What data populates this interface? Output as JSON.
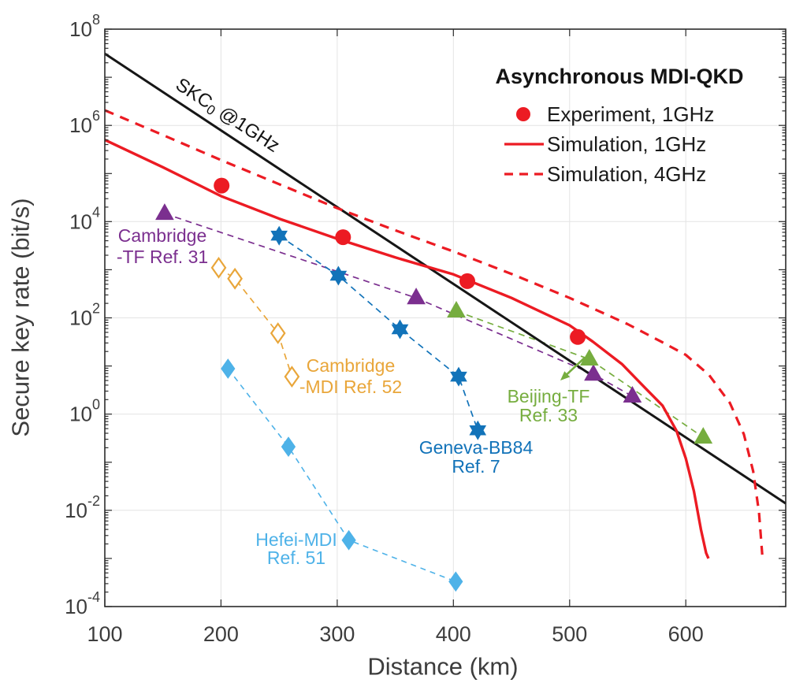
{
  "figure": {
    "background": "#ffffff"
  },
  "chart_data": {
    "type": "line",
    "title": "",
    "x_axis": {
      "label": "Distance (km)",
      "min": 100,
      "max": 686,
      "major_ticks": [
        100,
        200,
        300,
        400,
        500,
        600
      ],
      "gridlines": [
        200,
        300,
        400,
        500,
        600
      ]
    },
    "y_axis": {
      "label": "Secure key rate (bit/s)",
      "scale": "log10",
      "min_exponent": -4,
      "max_exponent": 8,
      "labeled_exponents": [
        8,
        6,
        4,
        2,
        0,
        -2,
        -4
      ],
      "gridline_exponents": [
        6,
        4,
        2,
        0,
        -2
      ]
    },
    "grid": "on",
    "legend": {
      "position": "top-right-inside",
      "title": "Asynchronous MDI-QKD",
      "title_x": 786,
      "title_y": 97,
      "marker_x": 664,
      "line_x1": 640,
      "line_x2": 690,
      "text_x": 694,
      "items": [
        {
          "label": "Experiment, 1GHz",
          "swatch": "dot",
          "color": "#ec1b23",
          "y": 145
        },
        {
          "label": "Simulation, 1GHz",
          "swatch": "solid-line",
          "color": "#ec1b23",
          "y": 183
        },
        {
          "label": "Simulation, 4GHz",
          "swatch": "dashed-line",
          "color": "#ec1b23",
          "y": 221
        }
      ]
    },
    "series": [
      {
        "id": "cambridge-tf",
        "name": "Cambridge-TF Ref. 31",
        "color": "#7b2f8f",
        "line": {
          "style": "dashed",
          "width": 1.7,
          "dash": [
            8,
            6
          ]
        },
        "marker": {
          "shape": "triangle",
          "filled": true,
          "size": 11
        },
        "points": [
          [
            151.5,
            14700.0
          ],
          [
            368,
            260.0
          ],
          [
            520.5,
            6.7
          ],
          [
            554,
            2.35
          ]
        ]
      },
      {
        "id": "cambridge-mdi",
        "name": "Cambridge-MDI Ref. 52",
        "color": "#e9a63a",
        "line": {
          "style": "dashed",
          "width": 1.7,
          "dash": [
            8,
            6
          ]
        },
        "marker": {
          "shape": "diamond",
          "filled": false,
          "size": 11.5
        },
        "points": [
          [
            198,
            1100.0
          ],
          [
            212,
            650.0
          ],
          [
            249,
            48
          ],
          [
            261,
            6.0
          ]
        ]
      },
      {
        "id": "beijing-tf",
        "name": "Beijing-TF Ref. 33",
        "color": "#76ad3f",
        "line": {
          "style": "dashed",
          "width": 1.7,
          "dash": [
            8,
            6
          ]
        },
        "marker": {
          "shape": "triangle",
          "filled": true,
          "size": 11
        },
        "points": [
          [
            402.5,
            138.0
          ],
          [
            517,
            13.8
          ],
          [
            615,
            0.33
          ]
        ]
      },
      {
        "id": "geneva-bb84",
        "name": "Geneva-BB84 Ref. 7",
        "color": "#1273b9",
        "line": {
          "style": "dashed",
          "width": 1.7,
          "dash": [
            8,
            6
          ]
        },
        "marker": {
          "shape": "hexagram",
          "filled": true,
          "size": 11.5
        },
        "points": [
          [
            250,
            5100.0
          ],
          [
            301,
            750.0
          ],
          [
            354,
            58
          ],
          [
            404.5,
            6.0
          ],
          [
            421,
            0.46
          ]
        ]
      },
      {
        "id": "hefei-mdi",
        "name": "Hefei-MDI Ref. 51",
        "color": "#4eb2e8",
        "line": {
          "style": "dashed",
          "width": 1.6,
          "dash": [
            7,
            6
          ]
        },
        "marker": {
          "shape": "diamond",
          "filled": true,
          "size": 11.5
        },
        "points": [
          [
            206,
            8.8
          ],
          [
            258,
            0.21
          ],
          [
            310,
            0.0024
          ],
          [
            402,
            0.00033
          ]
        ]
      },
      {
        "id": "skc0",
        "name": "SKC0 @1GHz",
        "color": "#161616",
        "line": {
          "style": "solid",
          "width": 3
        },
        "marker": {
          "shape": "none"
        },
        "points": [
          [
            100,
            31000000.0
          ],
          [
            686,
            0.0139
          ]
        ]
      },
      {
        "id": "simulation-4ghz",
        "name": "Simulation, 4GHz",
        "color": "#ec1b23",
        "line": {
          "style": "dashed",
          "width": 3.2,
          "dash": [
            12,
            9
          ]
        },
        "marker": {
          "shape": "none"
        },
        "points": [
          [
            100,
            2060000.0
          ],
          [
            150,
            630000.0
          ],
          [
            200,
            190000.0
          ],
          [
            250,
            60000.0
          ],
          [
            300,
            19000.0
          ],
          [
            350,
            6600.0
          ],
          [
            400,
            2400.0
          ],
          [
            450,
            820.0
          ],
          [
            500,
            260.0
          ],
          [
            550,
            74.0
          ],
          [
            580,
            31.0
          ],
          [
            600,
            17.0
          ],
          [
            620,
            6.5
          ],
          [
            638,
            1.7
          ],
          [
            650,
            0.38
          ],
          [
            658,
            0.065
          ],
          [
            663,
            0.009
          ],
          [
            665.8,
            0.0012
          ]
        ]
      },
      {
        "id": "simulation-1ghz",
        "name": "Simulation, 1GHz",
        "color": "#ec1b23",
        "line": {
          "style": "solid",
          "width": 3.4
        },
        "marker": {
          "shape": "none"
        },
        "points": [
          [
            100,
            500000.0
          ],
          [
            150,
            135000.0
          ],
          [
            200,
            34000.0
          ],
          [
            250,
            11500.0
          ],
          [
            300,
            4400.0
          ],
          [
            350,
            1800.0
          ],
          [
            400,
            800.0
          ],
          [
            450,
            260.0
          ],
          [
            500,
            70.0
          ],
          [
            520,
            32.0
          ],
          [
            545,
            11.0
          ],
          [
            565,
            3.5
          ],
          [
            580,
            1.5
          ],
          [
            592,
            0.45
          ],
          [
            600,
            0.12
          ],
          [
            607,
            0.025
          ],
          [
            613,
            0.004
          ],
          [
            617.5,
            0.0013
          ],
          [
            619.5,
            0.001
          ]
        ]
      },
      {
        "id": "experiment-1ghz",
        "name": "Experiment, 1GHz",
        "color": "#ec1b23",
        "line": {
          "style": "none"
        },
        "marker": {
          "shape": "circle",
          "filled": true,
          "size": 10
        },
        "points": [
          [
            200.5,
            56000.0
          ],
          [
            305,
            4750.0
          ],
          [
            412,
            580.0
          ],
          [
            507,
            40
          ]
        ]
      }
    ],
    "annotations": [
      {
        "id": "skc0-label",
        "pre": "SKC",
        "sub": "0",
        "post": " @1GHz",
        "color": "#141414",
        "x": 289,
        "y": 146,
        "rotation": 33
      },
      {
        "id": "cambridge-tf-label",
        "lines": [
          "Cambridge",
          "-TF Ref. 31"
        ],
        "color": "#7b2f8f",
        "x": 206,
        "y": 299,
        "line_height": 27
      },
      {
        "id": "cambridge-mdi-label",
        "lines": [
          "Cambridge",
          "-MDI Ref. 52"
        ],
        "color": "#e9a63a",
        "x": 445,
        "y": 464,
        "line_height": 27
      },
      {
        "id": "beijing-tf-label",
        "lines": [
          "Beijing-TF",
          "Ref. 33"
        ],
        "color": "#76ad3f",
        "x": 696,
        "y": 503,
        "line_height": 24
      },
      {
        "id": "geneva-bb84-label",
        "lines": [
          "Geneva-BB84",
          "Ref. 7"
        ],
        "color": "#1273b9",
        "x": 604,
        "y": 568,
        "line_height": 24
      },
      {
        "id": "hefei-mdi-label",
        "lines": [
          "Hefei-MDI",
          "Ref. 51"
        ],
        "color": "#4eb2e8",
        "x": 376,
        "y": 685,
        "line_height": 23
      }
    ],
    "arrow": {
      "x1": 742,
      "y1": 454,
      "x2": 711,
      "y2": 483,
      "color": "#76ad3f"
    }
  }
}
